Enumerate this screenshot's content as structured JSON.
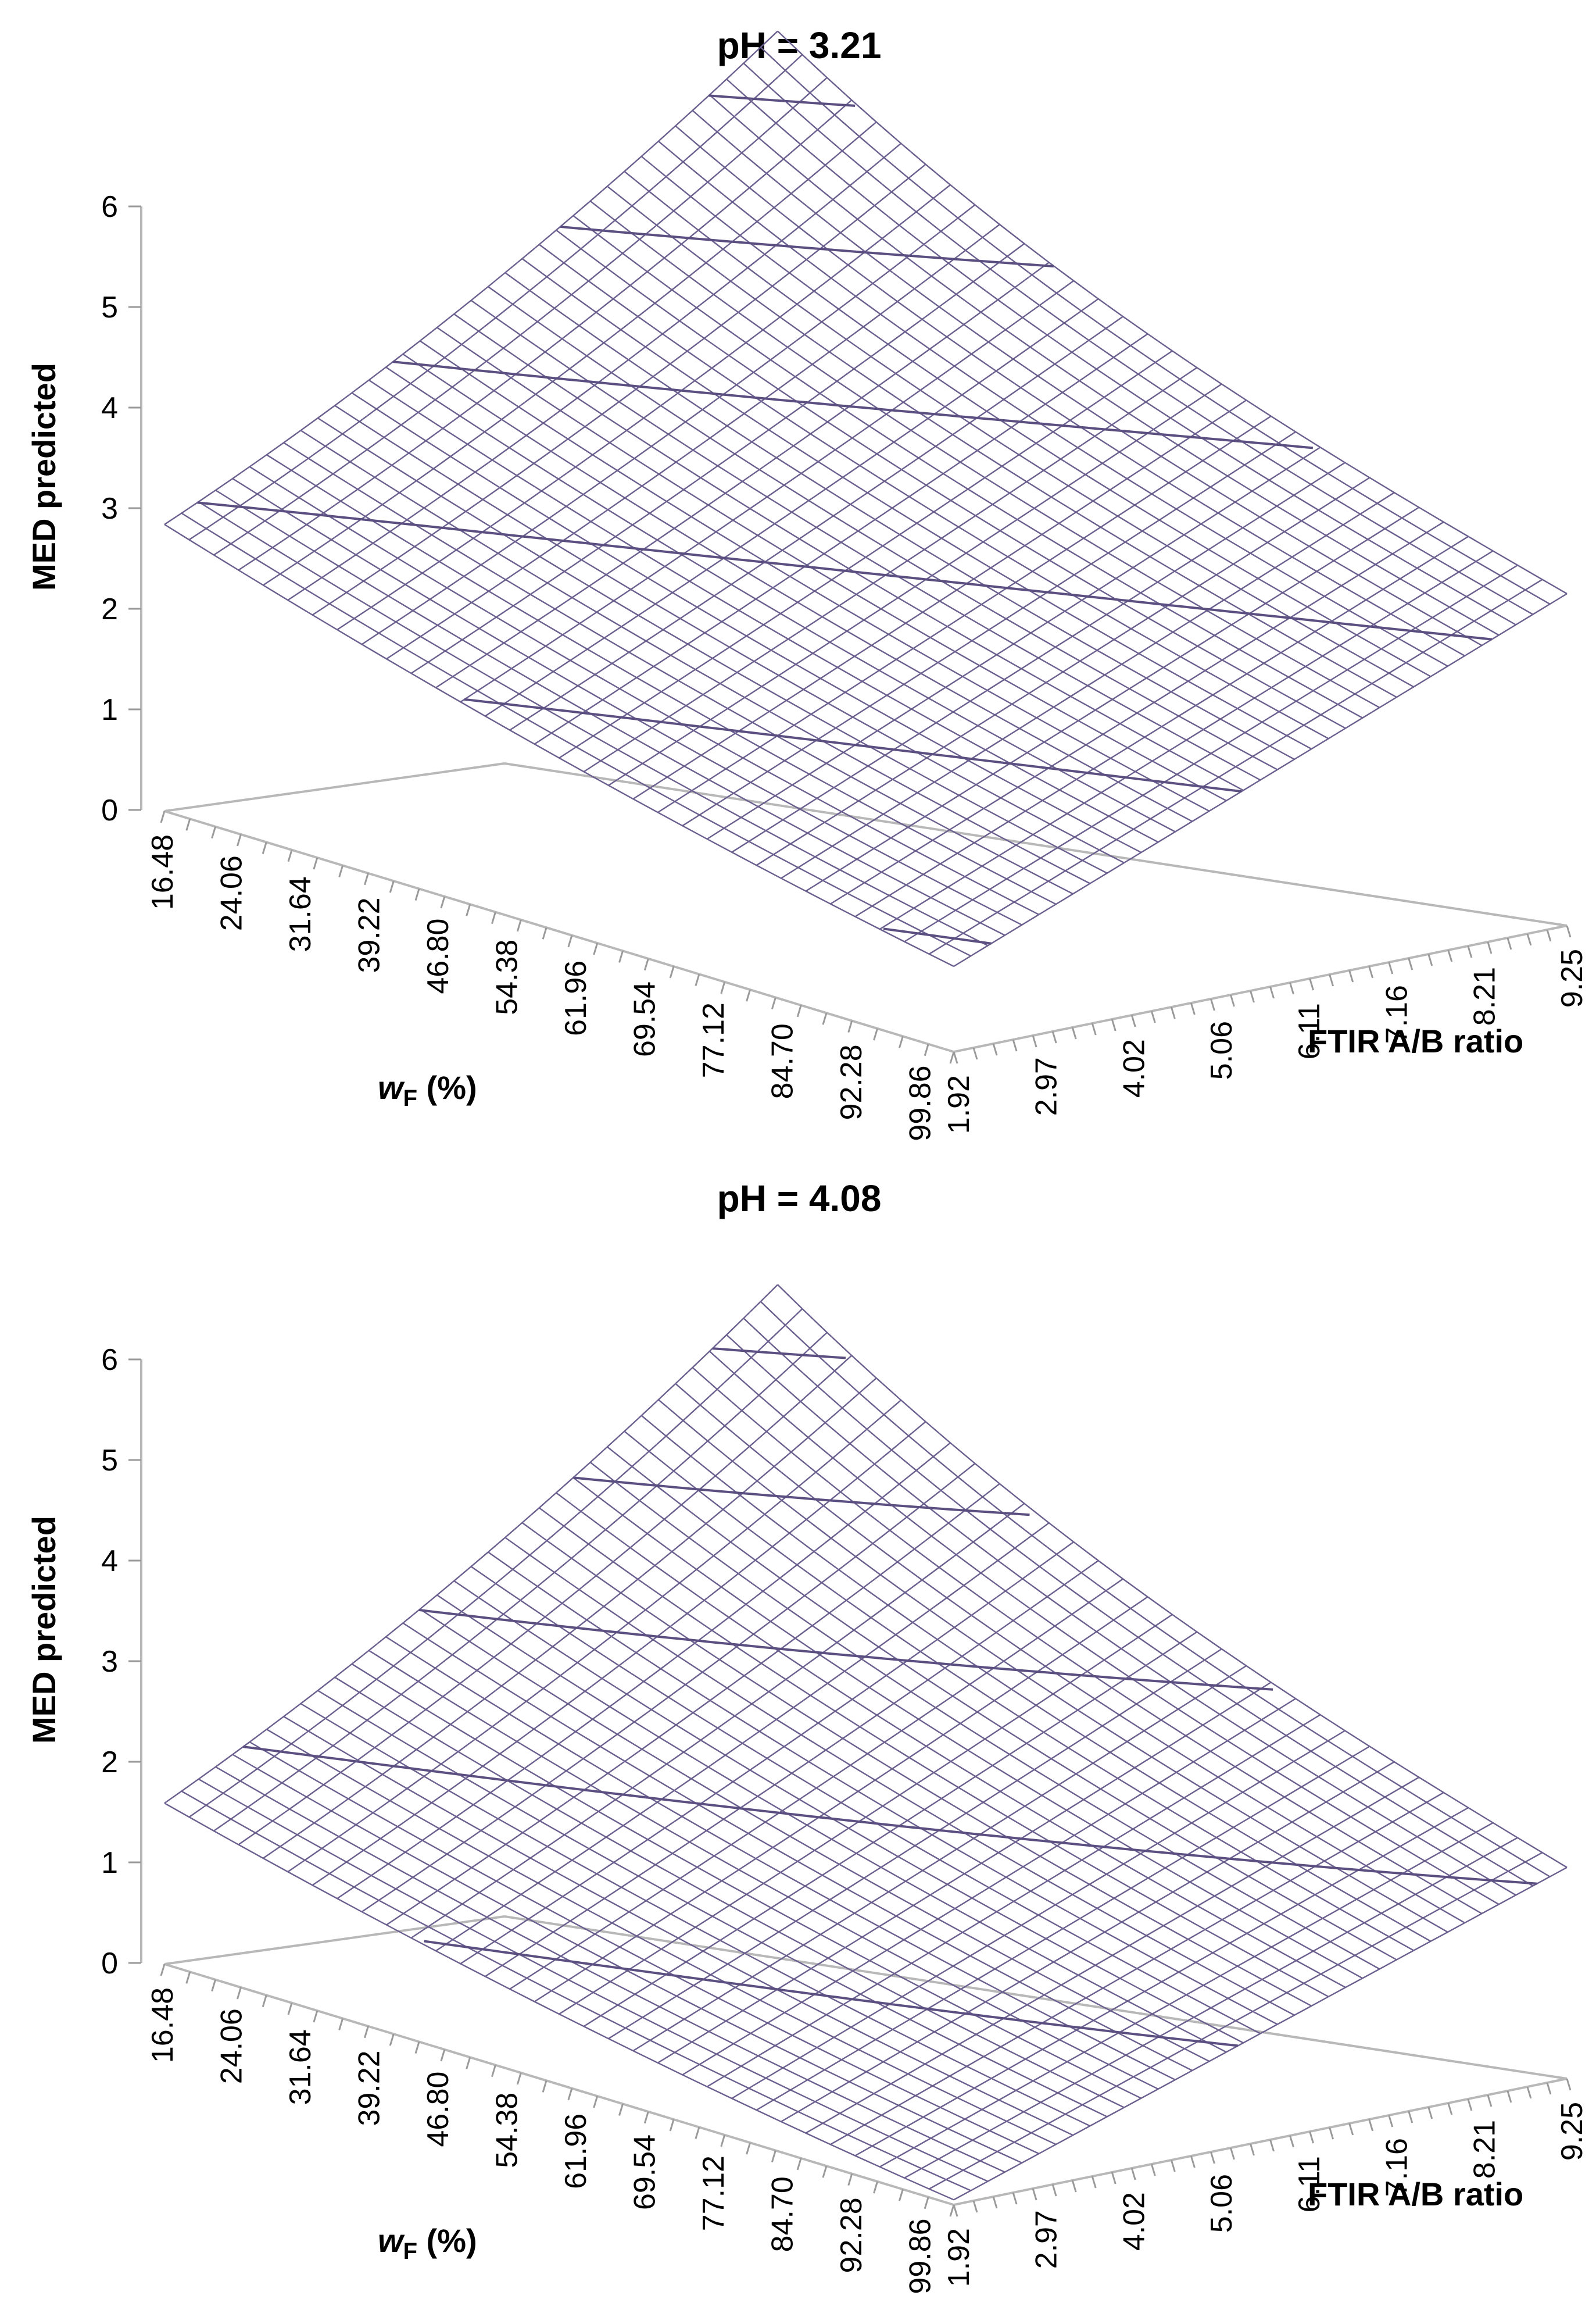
{
  "chart_data": [
    {
      "type": "surface3d",
      "title": "pH = 3.21",
      "zlabel": "MED predicted",
      "xlabel_main": "w",
      "xlabel_sub": "F",
      "xlabel_rest": " (%)",
      "ylabel": "FTIR A/B ratio",
      "x_ticks": [
        "16.48",
        "24.06",
        "31.64",
        "39.22",
        "46.80",
        "54.38",
        "61.96",
        "69.54",
        "77.12",
        "84.70",
        "92.28",
        "99.86"
      ],
      "y_ticks": [
        "1.92",
        "2.97",
        "4.02",
        "5.06",
        "6.11",
        "7.16",
        "8.21",
        "9.25"
      ],
      "z_ticks": [
        "0",
        "1",
        "2",
        "3",
        "4",
        "5",
        "6"
      ],
      "zlim": [
        0,
        6
      ],
      "corners": {
        "wF_min_ratio_min": 2.85,
        "wF_max_ratio_min": 0.85,
        "wF_min_ratio_max": 6.5,
        "wF_max_ratio_max": 3.3
      },
      "contour_levels": [
        1,
        2,
        3,
        4,
        5,
        6
      ]
    },
    {
      "type": "surface3d",
      "title": "pH = 4.08",
      "zlabel": "MED predicted",
      "xlabel_main": "w",
      "xlabel_sub": "F",
      "xlabel_rest": " (%)",
      "ylabel": "FTIR A/B ratio",
      "x_ticks": [
        "16.48",
        "24.06",
        "31.64",
        "39.22",
        "46.80",
        "54.38",
        "61.96",
        "69.54",
        "77.12",
        "84.70",
        "92.28",
        "99.86"
      ],
      "y_ticks": [
        "1.92",
        "2.97",
        "4.02",
        "5.06",
        "6.11",
        "7.16",
        "8.21",
        "9.25"
      ],
      "z_ticks": [
        "0",
        "1",
        "2",
        "3",
        "4",
        "5",
        "6"
      ],
      "zlim": [
        0,
        6
      ],
      "corners": {
        "wF_min_ratio_min": 1.6,
        "wF_max_ratio_min": 0.05,
        "wF_min_ratio_max": 5.5,
        "wF_max_ratio_max": 2.1
      },
      "contour_levels": [
        1,
        2,
        3,
        4,
        5
      ]
    }
  ]
}
